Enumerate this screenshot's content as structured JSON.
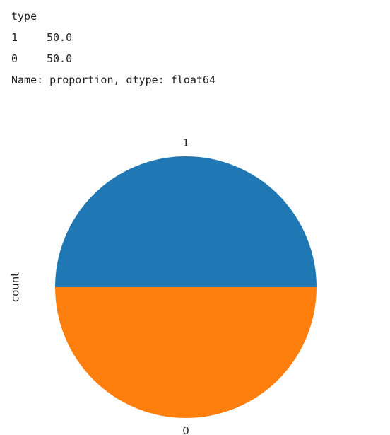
{
  "output": {
    "header": "type",
    "rows": [
      {
        "index": "1",
        "value": "50.0"
      },
      {
        "index": "0",
        "value": "50.0"
      }
    ],
    "footer": "Name: proportion, dtype: float64"
  },
  "chart_data": {
    "type": "pie",
    "title": "",
    "ylabel": "count",
    "categories": [
      "1",
      "0"
    ],
    "values": [
      50,
      50
    ],
    "colors": [
      "#1f77b4",
      "#ff7f0e"
    ],
    "start_angle_deg": 0,
    "counterclockwise": true,
    "legend": "none"
  }
}
